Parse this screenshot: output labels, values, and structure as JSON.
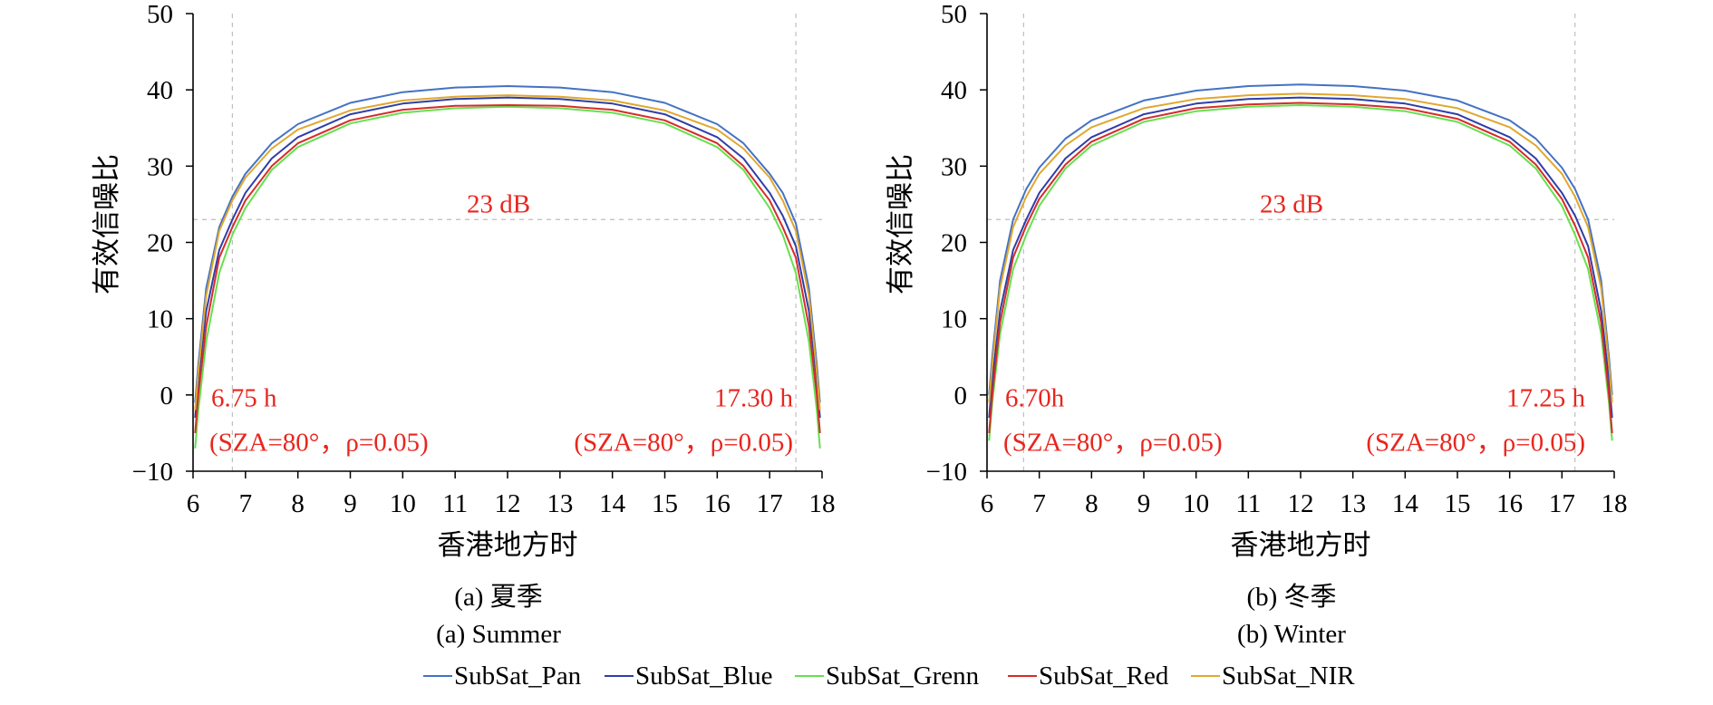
{
  "colors": {
    "pan": "#4472C4",
    "blue": "#2E3EA8",
    "green": "#66E04E",
    "red": "#D62B2B",
    "nir": "#E0A830",
    "annotation": "#E8261E",
    "axis": "#000000",
    "guide": "#BFBFBF"
  },
  "legend": [
    "SubSat_Pan",
    "SubSat_Blue",
    "SubSat_Grenn",
    "SubSat_Red",
    "SubSat_NIR"
  ],
  "chart_data": [
    {
      "type": "line",
      "caption_cn": "(a) 夏季",
      "caption_en": "(a) Summer",
      "xlabel": "香港地方时",
      "ylabel": "有效信噪比",
      "xlim": [
        6,
        18
      ],
      "ylim": [
        -10,
        50
      ],
      "xticks": [
        "6",
        "7",
        "8",
        "9",
        "10",
        "11",
        "12",
        "13",
        "14",
        "15",
        "16",
        "17",
        "18"
      ],
      "yticks": [
        "50",
        "40",
        "30",
        "20",
        "10",
        "0",
        "−10"
      ],
      "threshold": {
        "value": 23,
        "label": "23 dB"
      },
      "vlines": [
        6.75,
        17.5
      ],
      "annotations": [
        {
          "line1": "6.75 h",
          "line2": "(SZA=80°，ρ=0.05)",
          "anchor": "start"
        },
        {
          "line1": "17.30 h",
          "line2": "(SZA=80°，ρ=0.05)",
          "anchor": "end"
        }
      ],
      "series": [
        {
          "name": "SubSat_Pan",
          "peak": 40.5,
          "x": [
            6.04,
            6.1,
            6.25,
            6.5,
            6.75,
            7,
            7.5,
            8,
            9,
            10,
            11,
            12,
            13,
            14,
            15,
            16,
            16.5,
            17,
            17.25,
            17.5,
            17.75,
            17.9,
            17.96
          ],
          "values": [
            -1,
            4,
            14,
            22,
            26,
            29,
            33,
            35.5,
            38.3,
            39.7,
            40.3,
            40.5,
            40.3,
            39.7,
            38.3,
            35.5,
            33,
            29,
            26.5,
            22.5,
            14,
            4,
            -1
          ]
        },
        {
          "name": "SubSat_Blue",
          "peak": 39,
          "x": [
            6.04,
            6.1,
            6.25,
            6.5,
            6.75,
            7,
            7.5,
            8,
            9,
            10,
            11,
            12,
            13,
            14,
            15,
            16,
            16.5,
            17,
            17.25,
            17.5,
            17.75,
            17.9,
            17.96
          ],
          "values": [
            -3,
            2,
            11,
            19,
            23,
            26.5,
            31,
            33.8,
            36.8,
            38.2,
            38.8,
            39,
            38.8,
            38.2,
            36.8,
            33.8,
            31,
            26.5,
            23.5,
            19.5,
            11,
            2,
            -3
          ]
        },
        {
          "name": "SubSat_Grenn",
          "peak": 37.8,
          "x": [
            6.04,
            6.1,
            6.25,
            6.5,
            6.75,
            7,
            7.5,
            8,
            9,
            10,
            11,
            12,
            13,
            14,
            15,
            16,
            16.5,
            17,
            17.25,
            17.5,
            17.75,
            17.9,
            17.96
          ],
          "values": [
            -7,
            -2,
            7,
            16,
            21,
            24.5,
            29.5,
            32.5,
            35.6,
            37,
            37.6,
            37.8,
            37.6,
            37,
            35.6,
            32.5,
            29.5,
            24.5,
            21,
            16,
            7,
            -2,
            -7
          ]
        },
        {
          "name": "SubSat_Red",
          "peak": 38,
          "x": [
            6.04,
            6.1,
            6.25,
            6.5,
            6.75,
            7,
            7.5,
            8,
            9,
            10,
            11,
            12,
            13,
            14,
            15,
            16,
            16.5,
            17,
            17.25,
            17.5,
            17.75,
            17.9,
            17.96
          ],
          "values": [
            -5,
            0,
            9,
            18,
            22,
            25.5,
            30,
            33,
            36,
            37.4,
            37.9,
            38,
            37.9,
            37.4,
            36,
            33,
            30,
            25.5,
            22,
            18,
            9,
            0,
            -5
          ]
        },
        {
          "name": "SubSat_NIR",
          "peak": 39.3,
          "x": [
            6.04,
            6.1,
            6.25,
            6.5,
            6.75,
            7,
            7.5,
            8,
            9,
            10,
            11,
            12,
            13,
            14,
            15,
            16,
            16.5,
            17,
            17.25,
            17.5,
            17.75,
            17.9,
            17.96
          ],
          "values": [
            -2,
            3,
            13,
            21.5,
            25.5,
            28.5,
            32.3,
            34.8,
            37.3,
            38.6,
            39.1,
            39.3,
            39.1,
            38.6,
            37.3,
            34.8,
            32.3,
            28.5,
            25.5,
            21.5,
            13,
            3,
            -2
          ]
        }
      ]
    },
    {
      "type": "line",
      "caption_cn": "(b) 冬季",
      "caption_en": "(b) Winter",
      "xlabel": "香港地方时",
      "ylabel": "有效信噪比",
      "xlim": [
        6,
        18
      ],
      "ylim": [
        -10,
        50
      ],
      "xticks": [
        "6",
        "7",
        "8",
        "9",
        "10",
        "11",
        "12",
        "13",
        "14",
        "15",
        "16",
        "17",
        "18"
      ],
      "yticks": [
        "50",
        "40",
        "30",
        "20",
        "10",
        "0",
        "−10"
      ],
      "threshold": {
        "value": 23,
        "label": "23 dB"
      },
      "vlines": [
        6.7,
        17.25
      ],
      "annotations": [
        {
          "line1": "6.70h",
          "line2": "(SZA=80°，ρ=0.05)",
          "anchor": "start"
        },
        {
          "line1": "17.25 h",
          "line2": "(SZA=80°，ρ=0.05)",
          "anchor": "end"
        }
      ],
      "series": [
        {
          "name": "SubSat_Pan",
          "peak": 40.7,
          "x": [
            6.04,
            6.1,
            6.25,
            6.5,
            6.75,
            7,
            7.5,
            8,
            9,
            10,
            11,
            12,
            13,
            14,
            15,
            16,
            16.5,
            17,
            17.25,
            17.5,
            17.75,
            17.9,
            17.96
          ],
          "values": [
            0,
            5,
            15,
            23,
            27,
            29.8,
            33.6,
            36,
            38.6,
            39.9,
            40.5,
            40.7,
            40.5,
            39.9,
            38.6,
            36,
            33.6,
            29.8,
            27,
            23,
            15,
            5,
            0
          ]
        },
        {
          "name": "SubSat_Blue",
          "peak": 39,
          "x": [
            6.04,
            6.1,
            6.25,
            6.5,
            6.75,
            7,
            7.5,
            8,
            9,
            10,
            11,
            12,
            13,
            14,
            15,
            16,
            16.5,
            17,
            17.25,
            17.5,
            17.75,
            17.9,
            17.96
          ],
          "values": [
            -3,
            2,
            11,
            19,
            23,
            26.5,
            31,
            33.8,
            36.8,
            38.2,
            38.8,
            39,
            38.8,
            38.2,
            36.8,
            33.8,
            31,
            26.5,
            23.5,
            19.5,
            11,
            2,
            -3
          ]
        },
        {
          "name": "SubSat_Grenn",
          "peak": 38,
          "x": [
            6.04,
            6.1,
            6.25,
            6.5,
            6.75,
            7,
            7.5,
            8,
            9,
            10,
            11,
            12,
            13,
            14,
            15,
            16,
            16.5,
            17,
            17.25,
            17.5,
            17.75,
            17.9,
            17.96
          ],
          "values": [
            -6,
            -1,
            8,
            16.5,
            21,
            24.8,
            29.7,
            32.7,
            35.8,
            37.2,
            37.8,
            38,
            37.8,
            37.2,
            35.8,
            32.7,
            29.7,
            24.8,
            21,
            16.5,
            8,
            -1,
            -6
          ]
        },
        {
          "name": "SubSat_Red",
          "peak": 38.3,
          "x": [
            6.04,
            6.1,
            6.25,
            6.5,
            6.75,
            7,
            7.5,
            8,
            9,
            10,
            11,
            12,
            13,
            14,
            15,
            16,
            16.5,
            17,
            17.25,
            17.5,
            17.75,
            17.9,
            17.96
          ],
          "values": [
            -5,
            0,
            9.5,
            18,
            22.2,
            25.7,
            30.2,
            33.2,
            36.2,
            37.6,
            38.1,
            38.3,
            38.1,
            37.6,
            36.2,
            33.2,
            30.2,
            25.7,
            22.2,
            18,
            9.5,
            0,
            -5
          ]
        },
        {
          "name": "SubSat_NIR",
          "peak": 39.5,
          "x": [
            6.04,
            6.1,
            6.25,
            6.5,
            6.75,
            7,
            7.5,
            8,
            9,
            10,
            11,
            12,
            13,
            14,
            15,
            16,
            16.5,
            17,
            17.25,
            17.5,
            17.75,
            17.9,
            17.96
          ],
          "values": [
            -1,
            4,
            14,
            22,
            26,
            29,
            32.7,
            35.1,
            37.6,
            38.8,
            39.3,
            39.5,
            39.3,
            38.8,
            37.6,
            35.1,
            32.7,
            29,
            26,
            22,
            14,
            4,
            -1
          ]
        }
      ]
    }
  ]
}
